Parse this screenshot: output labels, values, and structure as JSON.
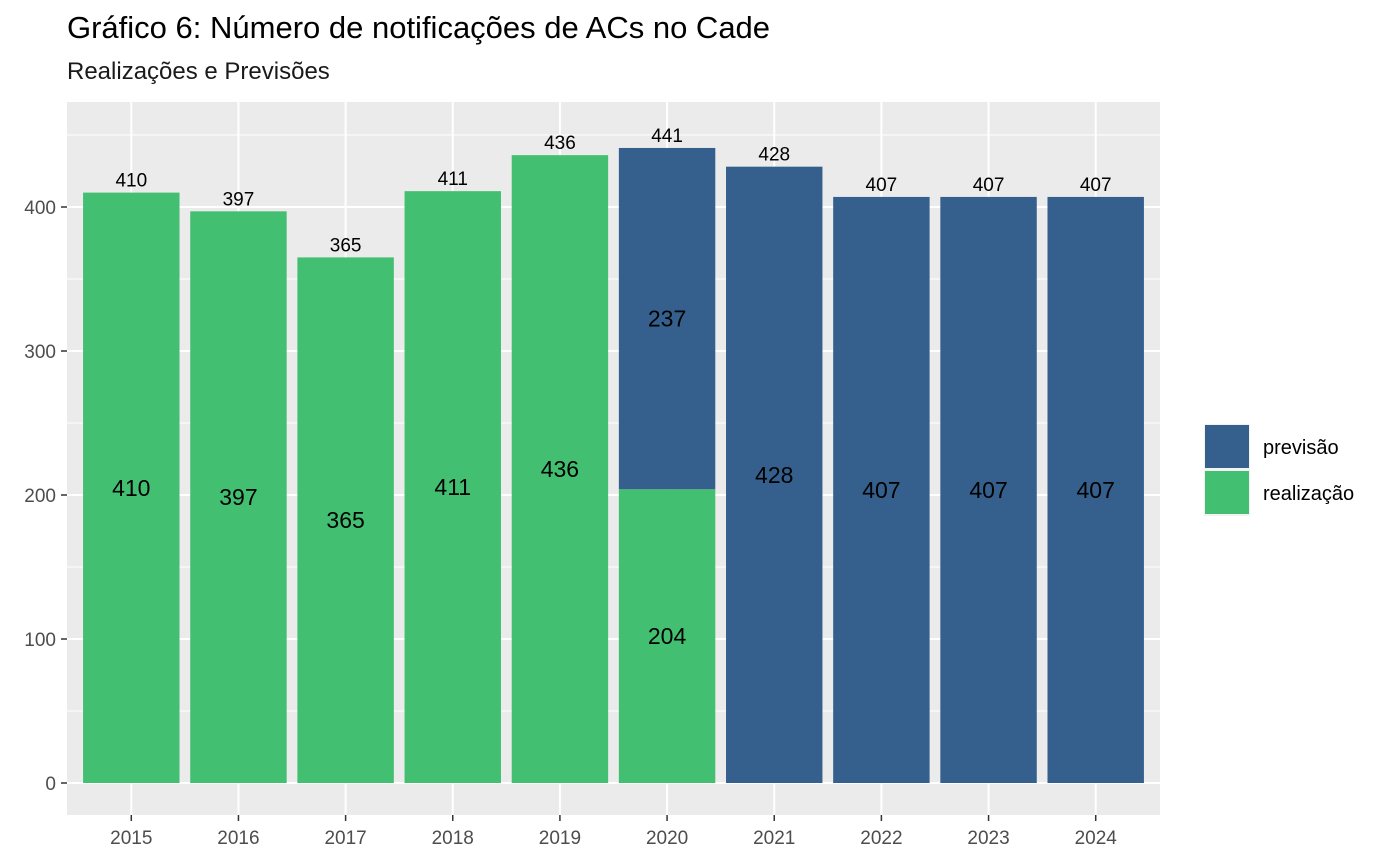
{
  "chart_data": {
    "type": "bar",
    "stacked": true,
    "title": "Gráfico 6: Número de notificações de ACs no Cade",
    "subtitle": "Realizações e Previsões",
    "xlabel": "",
    "ylabel": "",
    "categories": [
      "2015",
      "2016",
      "2017",
      "2018",
      "2019",
      "2020",
      "2021",
      "2022",
      "2023",
      "2024"
    ],
    "series": [
      {
        "name": "realização",
        "color": "#43BF71",
        "values": [
          410,
          397,
          365,
          411,
          436,
          204,
          0,
          0,
          0,
          0
        ]
      },
      {
        "name": "previsão",
        "color": "#35608D",
        "values": [
          0,
          0,
          0,
          0,
          0,
          237,
          428,
          407,
          407,
          407
        ]
      }
    ],
    "totals": [
      410,
      397,
      365,
      411,
      436,
      441,
      428,
      407,
      407,
      407
    ],
    "ylim": [
      0,
      460
    ],
    "yticks": [
      0,
      100,
      200,
      300,
      400
    ],
    "legend": {
      "position": "right",
      "order": [
        "previsão",
        "realização"
      ]
    },
    "grid": true,
    "panel_background": "#EBEBEB"
  }
}
